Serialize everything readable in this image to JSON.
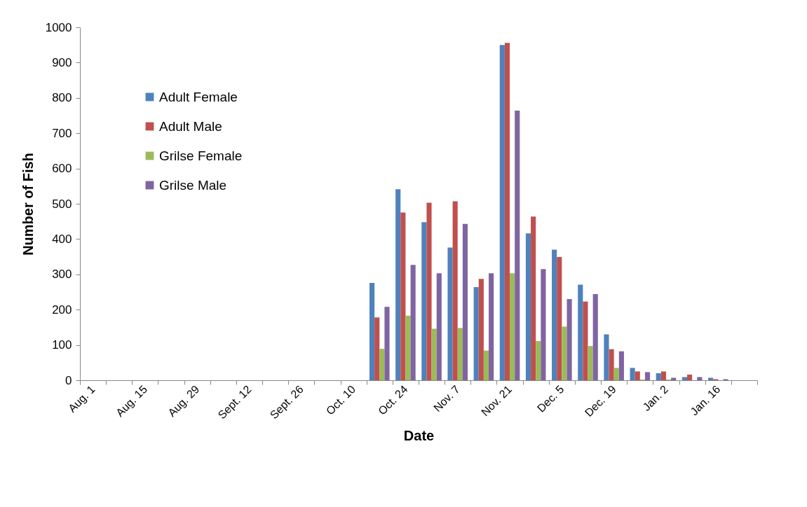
{
  "chart_data": {
    "type": "bar",
    "xlabel": "Date",
    "ylabel": "Number of Fish",
    "categories": [
      "Aug. 1",
      null,
      "Aug. 15",
      null,
      "Aug. 29",
      null,
      "Sept. 12",
      null,
      "Sept. 26",
      null,
      "Oct. 10",
      null,
      "Oct. 24",
      null,
      "Nov. 7",
      null,
      "Nov. 21",
      null,
      "Dec. 5",
      null,
      "Dec. 19",
      null,
      "Jan. 2",
      null,
      "Jan. 16",
      null
    ],
    "series": [
      {
        "name": "Adult Female",
        "color": "#4f81bd",
        "values": [
          null,
          null,
          null,
          null,
          null,
          null,
          null,
          null,
          null,
          null,
          null,
          276,
          541,
          448,
          376,
          264,
          950,
          416,
          370,
          271,
          130,
          35,
          20,
          9,
          7,
          null
        ]
      },
      {
        "name": "Adult Male",
        "color": "#c0504d",
        "values": [
          null,
          null,
          null,
          null,
          null,
          null,
          null,
          null,
          null,
          null,
          null,
          178,
          475,
          503,
          507,
          287,
          956,
          464,
          349,
          223,
          88,
          25,
          25,
          16,
          3,
          null
        ]
      },
      {
        "name": "Grilse Female",
        "color": "#9bbb59",
        "values": [
          null,
          null,
          null,
          null,
          null,
          null,
          null,
          null,
          null,
          null,
          null,
          89,
          183,
          146,
          148,
          84,
          303,
          111,
          152,
          97,
          35,
          2,
          2,
          null,
          null,
          null
        ]
      },
      {
        "name": "Grilse Male",
        "color": "#8064a2",
        "values": [
          null,
          null,
          null,
          null,
          null,
          null,
          null,
          null,
          null,
          null,
          null,
          208,
          327,
          303,
          443,
          303,
          764,
          315,
          230,
          244,
          82,
          23,
          7,
          9,
          3,
          null
        ]
      }
    ],
    "ylim": [
      0,
      1000
    ],
    "yticks": [
      0,
      100,
      200,
      300,
      400,
      500,
      600,
      700,
      800,
      900,
      1000
    ],
    "grid": false,
    "legend": "top left"
  }
}
